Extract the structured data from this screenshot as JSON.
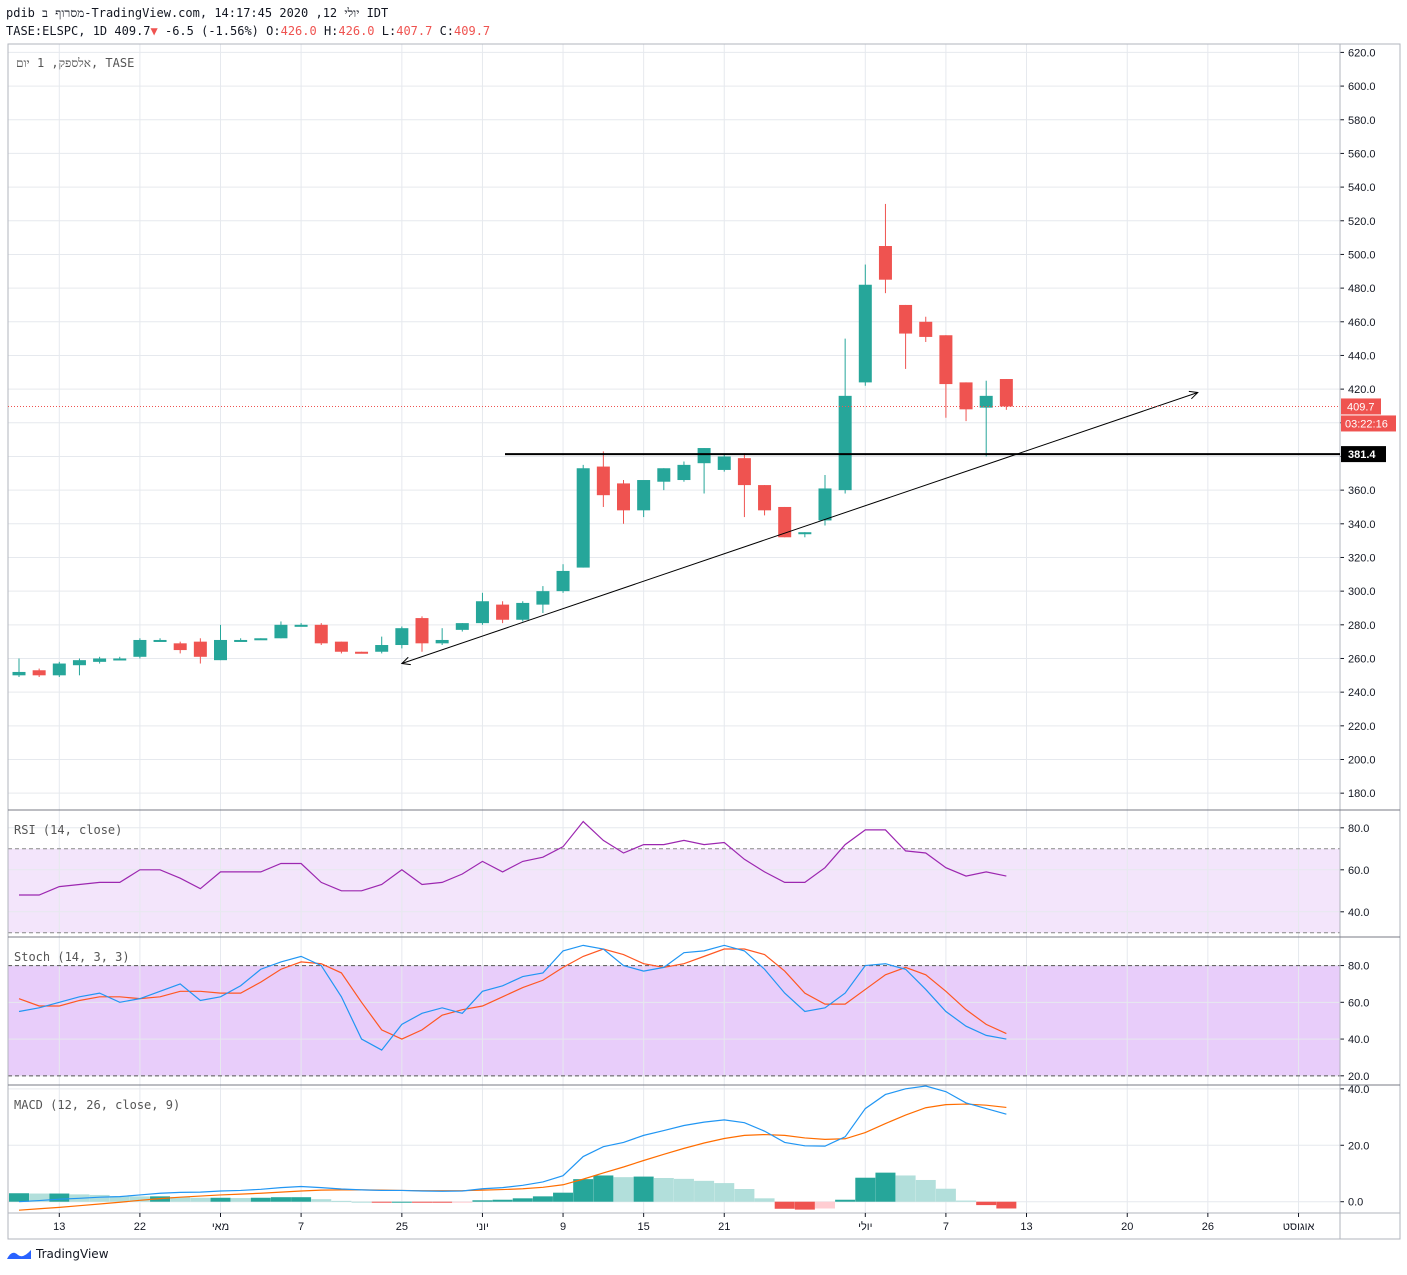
{
  "header": {
    "line1": "pdib מסרוף ב-TradingView.com, יולי 12, 2020 14:17:45 IDT",
    "symbol": "TASE:ELSPC, 1D",
    "last": "409.7",
    "change": "-6.5 (-1.56%)",
    "o_label": "O:",
    "o_value": "426.0",
    "h_label": "H:",
    "h_value": "426.0",
    "l_label": "L:",
    "l_value": "407.7",
    "c_label": "C:",
    "c_value": "409.7",
    "down_arrow": "▼"
  },
  "footer": {
    "logo_text": "TradingView"
  },
  "colors": {
    "up": "#26a69a",
    "down": "#ef5350",
    "grid": "#e6e9ee",
    "axis_text": "#131722",
    "rsi_line": "#9c27b0",
    "rsi_band": "#f3e5fb",
    "stoch_band": "#e8cdfa",
    "stoch_k": "#2196f3",
    "stoch_d": "#ff5722",
    "macd_line": "#2196f3",
    "signal_line": "#ff6d00",
    "hist_up_strong": "#26a69a",
    "hist_up_weak": "#b2dfdb",
    "hist_down_strong": "#ef5350",
    "hist_down_weak": "#ffcdd2"
  },
  "chart_data": [
    {
      "type": "candlestick",
      "pane": "price",
      "title": "אלספק, 1 יום, TASE",
      "ylim": [
        170,
        625
      ],
      "yticks": [
        180.0,
        200.0,
        220.0,
        240.0,
        260.0,
        280.0,
        300.0,
        320.0,
        340.0,
        360.0,
        380.0,
        400.0,
        420.0,
        440.0,
        460.0,
        480.0,
        500.0,
        520.0,
        540.0,
        560.0,
        580.0,
        600.0,
        620.0
      ],
      "x_labels": [
        {
          "i": 2,
          "label": "13"
        },
        {
          "i": 6,
          "label": "22"
        },
        {
          "i": 10,
          "label": "מאי"
        },
        {
          "i": 14,
          "label": "7"
        },
        {
          "i": 19,
          "label": "25"
        },
        {
          "i": 23,
          "label": "יוני"
        },
        {
          "i": 27,
          "label": "9"
        },
        {
          "i": 31,
          "label": "15"
        },
        {
          "i": 35,
          "label": "21"
        },
        {
          "i": 42,
          "label": "יולי"
        },
        {
          "i": 46,
          "label": "7"
        },
        {
          "i": 50,
          "label": "13"
        },
        {
          "i": 55,
          "label": "20"
        },
        {
          "i": 59,
          "label": "26"
        },
        {
          "i": 63.5,
          "label": "אוגוסט"
        }
      ],
      "candles": [
        [
          250,
          260,
          249,
          252
        ],
        [
          253,
          254,
          249,
          250
        ],
        [
          250,
          258,
          249,
          257
        ],
        [
          256,
          260,
          250,
          259
        ],
        [
          258,
          261,
          257,
          260
        ],
        [
          260,
          261,
          259,
          260
        ],
        [
          261,
          272,
          260,
          271
        ],
        [
          271,
          272,
          270,
          271
        ],
        [
          269,
          270,
          263,
          265
        ],
        [
          270,
          272,
          257,
          261
        ],
        [
          259,
          280,
          259,
          271
        ],
        [
          271,
          272,
          271,
          271
        ],
        [
          271,
          272,
          271,
          272
        ],
        [
          272,
          282,
          272,
          280
        ],
        [
          280,
          281,
          279,
          280
        ],
        [
          280,
          281,
          268,
          269
        ],
        [
          270,
          270,
          263,
          264
        ],
        [
          264,
          264,
          263,
          263
        ],
        [
          264,
          273,
          263,
          268
        ],
        [
          268,
          279,
          266,
          278
        ],
        [
          284,
          285,
          264,
          269
        ],
        [
          269,
          278,
          268,
          271
        ],
        [
          277,
          281,
          276,
          281
        ],
        [
          281,
          299,
          280,
          294
        ],
        [
          292,
          294,
          281,
          283
        ],
        [
          283,
          294,
          282,
          293
        ],
        [
          292,
          303,
          287,
          300
        ],
        [
          300,
          316,
          299,
          312
        ],
        [
          314,
          375,
          314,
          373
        ],
        [
          374,
          383,
          350,
          357
        ],
        [
          364,
          366,
          340,
          348
        ],
        [
          348,
          365,
          344,
          366
        ],
        [
          365,
          373,
          360,
          373
        ],
        [
          366,
          377,
          365,
          375
        ],
        [
          376,
          385,
          358,
          385
        ],
        [
          372,
          381,
          371,
          380
        ],
        [
          379,
          382,
          344,
          363
        ],
        [
          363,
          363,
          345,
          348
        ],
        [
          350,
          350,
          332,
          332
        ],
        [
          334,
          335,
          332,
          335
        ],
        [
          342,
          369,
          339,
          361
        ],
        [
          360,
          450,
          358,
          416
        ],
        [
          424,
          494,
          422,
          482
        ],
        [
          505,
          530,
          477,
          485
        ],
        [
          470,
          470,
          432,
          453
        ],
        [
          460,
          463,
          448,
          451
        ],
        [
          452,
          452,
          403,
          423
        ],
        [
          424,
          424,
          401,
          408
        ],
        [
          409,
          425,
          380,
          416
        ],
        [
          426,
          426,
          407.7,
          409.7
        ]
      ],
      "last_price": 409.7,
      "last_price_label": "409.7",
      "countdown_label": "03:22:16",
      "horizontal_line": {
        "value": 381.4,
        "label": "381.4"
      },
      "trend_line": {
        "from": {
          "i": 19,
          "value": 257
        },
        "to": {
          "i": 58.5,
          "value": 418
        }
      }
    },
    {
      "type": "line",
      "pane": "rsi",
      "title": "RSI (14, close)",
      "ylim": [
        28,
        88
      ],
      "yticks": [
        40.0,
        60.0,
        80.0
      ],
      "band": [
        30,
        70
      ],
      "values": [
        48,
        48,
        52,
        53,
        54,
        54,
        60,
        60,
        56,
        51,
        59,
        59,
        59,
        63,
        63,
        54,
        50,
        50,
        53,
        60,
        53,
        54,
        58,
        64,
        59,
        64,
        66,
        71,
        83,
        74,
        68,
        72,
        72,
        74,
        72,
        73,
        65,
        59,
        54,
        54,
        61,
        72,
        79,
        79,
        69,
        68,
        61,
        57,
        59,
        57
      ]
    },
    {
      "type": "line",
      "pane": "stoch",
      "title": "Stoch (14, 3, 3)",
      "ylim": [
        15,
        95
      ],
      "yticks": [
        20.0,
        40.0,
        60.0,
        80.0
      ],
      "band": [
        20,
        80
      ],
      "series": [
        {
          "name": "%K",
          "values": [
            55,
            57,
            60,
            63,
            65,
            60,
            62,
            66,
            70,
            61,
            63,
            69,
            78,
            82,
            85,
            80,
            63,
            40,
            34,
            48,
            54,
            57,
            54,
            66,
            69,
            74,
            76,
            88,
            91,
            89,
            80,
            77,
            79,
            87,
            88,
            91,
            88,
            78,
            65,
            55,
            57,
            65,
            80,
            81,
            78,
            67,
            55,
            47,
            42,
            40
          ]
        },
        {
          "name": "%D",
          "values": [
            62,
            58,
            58,
            61,
            63,
            63,
            62,
            63,
            66,
            66,
            65,
            65,
            71,
            78,
            82,
            81,
            76,
            60,
            45,
            40,
            45,
            53,
            56,
            58,
            63,
            68,
            72,
            79,
            85,
            89,
            86,
            81,
            79,
            81,
            85,
            89,
            89,
            86,
            77,
            65,
            59,
            59,
            67,
            75,
            79,
            75,
            66,
            56,
            48,
            43
          ]
        }
      ]
    },
    {
      "type": "line",
      "pane": "macd",
      "title": "MACD (12, 26, close, 9)",
      "ylim": [
        -4,
        41
      ],
      "yticks": [
        0.0,
        20.0,
        40.0
      ],
      "series": [
        {
          "name": "MACD",
          "values": [
            0.0,
            0.4,
            0.9,
            1.2,
            1.6,
            1.8,
            2.4,
            3.0,
            3.3,
            3.4,
            3.8,
            4.0,
            4.4,
            5.0,
            5.4,
            5.0,
            4.5,
            4.2,
            4.0,
            4.0,
            3.8,
            3.7,
            3.8,
            4.6,
            5.0,
            5.8,
            7.0,
            9.2,
            16.0,
            19.5,
            21.0,
            23.5,
            25.2,
            27.0,
            28.2,
            29.0,
            28.0,
            25.0,
            21.0,
            19.8,
            19.7,
            23.0,
            33.0,
            38.0,
            40.0,
            41.0,
            39.0,
            35.0,
            33.0,
            31.0
          ]
        },
        {
          "name": "Signal",
          "values": [
            -3.0,
            -2.5,
            -2.0,
            -1.4,
            -0.8,
            -0.2,
            0.5,
            1.1,
            1.6,
            2.0,
            2.4,
            2.7,
            3.0,
            3.4,
            3.8,
            4.1,
            4.2,
            4.2,
            4.1,
            4.0,
            3.9,
            3.9,
            3.9,
            4.1,
            4.3,
            4.6,
            5.1,
            6.0,
            8.0,
            10.2,
            12.3,
            14.6,
            16.8,
            18.9,
            20.8,
            22.4,
            23.5,
            23.8,
            23.5,
            22.6,
            22.1,
            22.3,
            24.5,
            27.7,
            30.7,
            33.3,
            34.4,
            34.6,
            34.2,
            33.4
          ]
        },
        {
          "name": "Histogram",
          "values": [
            3.0,
            2.9,
            2.9,
            2.6,
            2.4,
            2.0,
            1.9,
            1.9,
            1.7,
            1.4,
            1.4,
            1.3,
            1.4,
            1.6,
            1.6,
            0.9,
            0.3,
            0.0,
            -0.1,
            0.0,
            -0.1,
            -0.2,
            -0.1,
            0.5,
            0.7,
            1.2,
            1.9,
            3.2,
            8.0,
            9.3,
            8.7,
            8.9,
            8.4,
            8.1,
            7.4,
            6.6,
            4.5,
            1.2,
            -2.5,
            -2.8,
            -2.4,
            0.7,
            8.5,
            10.3,
            9.3,
            7.7,
            4.6,
            0.4,
            -1.2,
            -2.4
          ]
        }
      ]
    }
  ]
}
